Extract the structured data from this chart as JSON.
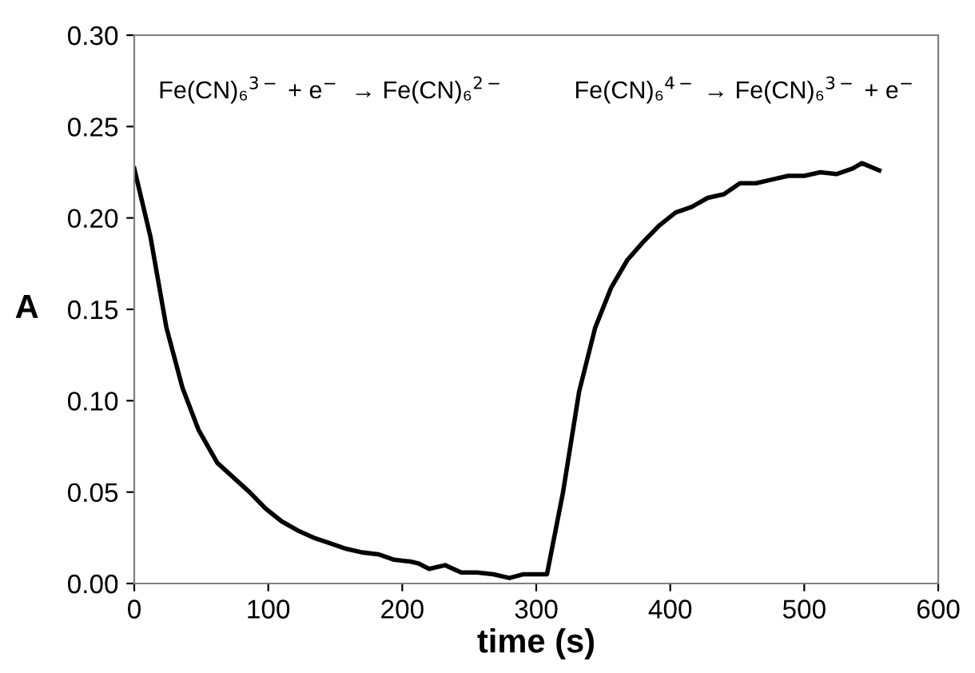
{
  "chart_data": {
    "type": "line",
    "xlabel": "time (s)",
    "ylabel": "A",
    "annotations": [
      "Fe(CN)₆$^{3−}$ + e$^{−}$  → Fe(CN)₆$^{2−}$",
      "Fe(CN)₆$^{4−}$ → Fe(CN)₆$^{3−}$ + e$^{−}$"
    ],
    "x": [
      0,
      12,
      24,
      36,
      48,
      62,
      74,
      86,
      98,
      110,
      122,
      134,
      146,
      158,
      170,
      182,
      194,
      206,
      212,
      220,
      232,
      244,
      256,
      268,
      280,
      290,
      308,
      320,
      332,
      344,
      356,
      368,
      380,
      392,
      404,
      416,
      428,
      440,
      452,
      464,
      476,
      488,
      500,
      512,
      524,
      536,
      543,
      556
    ],
    "series": [
      {
        "color": "#000000",
        "values": [
          0.227,
          0.19,
          0.14,
          0.107,
          0.084,
          0.066,
          0.058,
          0.05,
          0.041,
          0.034,
          0.029,
          0.025,
          0.022,
          0.019,
          0.017,
          0.016,
          0.013,
          0.012,
          0.011,
          0.008,
          0.01,
          0.006,
          0.006,
          0.005,
          0.003,
          0.005,
          0.005,
          0.05,
          0.105,
          0.14,
          0.162,
          0.177,
          0.187,
          0.196,
          0.203,
          0.206,
          0.211,
          0.213,
          0.219,
          0.219,
          0.221,
          0.223,
          0.223,
          0.225,
          0.224,
          0.227,
          0.23,
          0.226
        ]
      }
    ],
    "xlim": [
      0,
      600
    ],
    "xticks": [
      0,
      100,
      200,
      300,
      400,
      500,
      600
    ],
    "ylim": [
      0,
      0.3
    ],
    "yticks": [
      {
        "value": 0,
        "label": "0.00"
      },
      {
        "value": 0.05,
        "label": "0.05"
      },
      {
        "value": 0.1,
        "label": "0.10"
      },
      {
        "value": 0.15,
        "label": "0.15"
      },
      {
        "value": 0.2,
        "label": "0.20"
      },
      {
        "value": 0.25,
        "label": "0.25"
      },
      {
        "value": 0.3,
        "label": "0.30"
      }
    ],
    "grid": false,
    "marker": "none",
    "line_style": "solid"
  }
}
